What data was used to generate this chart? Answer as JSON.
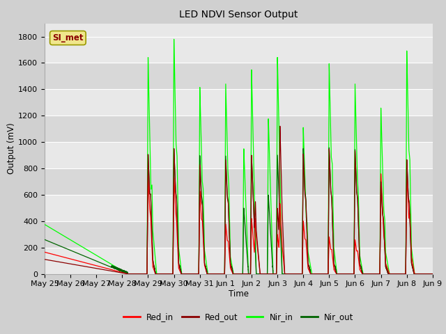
{
  "title": "LED NDVI Sensor Output",
  "xlabel": "Time",
  "ylabel": "Output (mV)",
  "ylim": [
    0,
    1900
  ],
  "yticks": [
    0,
    200,
    400,
    600,
    800,
    1000,
    1200,
    1400,
    1600,
    1800
  ],
  "xtick_labels": [
    "May 25",
    "May 26",
    "May 27",
    "May 28",
    "May 29",
    "May 30",
    "May 31",
    "Jun 1",
    "Jun 2",
    "Jun 3",
    "Jun 4",
    "Jun 5",
    "Jun 6",
    "Jun 7",
    "Jun 8",
    "Jun 9"
  ],
  "annotation_text": "SI_met",
  "annotation_bg": "#f0e68c",
  "annotation_border": "#999900",
  "annotation_text_color": "#8B0000",
  "colors": {
    "Red_in": "#ff0000",
    "Red_out": "#8B0000",
    "Nir_in": "#00ff00",
    "Nir_out": "#006400"
  },
  "fig_bg": "#d0d0d0",
  "plot_bg_light": "#e8e8e8",
  "plot_bg_dark": "#d8d8d8"
}
